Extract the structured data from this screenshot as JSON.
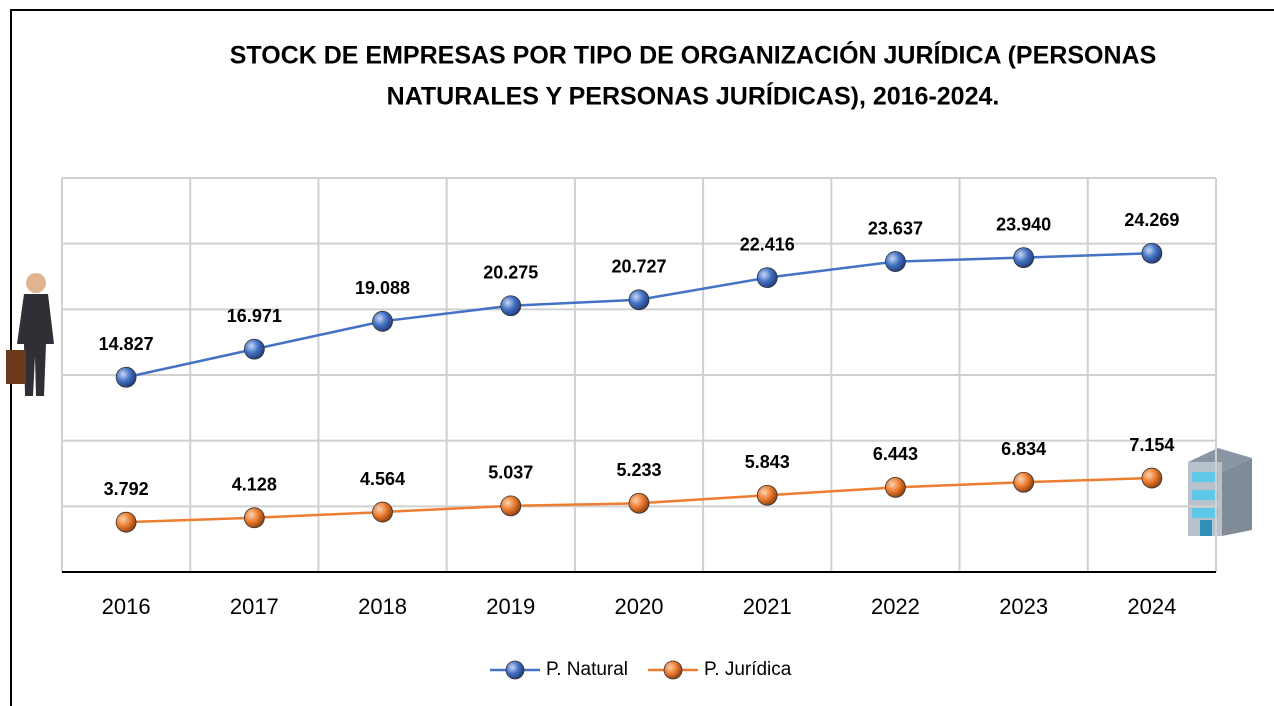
{
  "chart_data": {
    "type": "line",
    "title": [
      "STOCK DE EMPRESAS POR TIPO DE ORGANIZACIÓN JURÍDICA (PERSONAS",
      "NATURALES Y PERSONAS JURÍDICAS), 2016-2024."
    ],
    "categories": [
      "2016",
      "2017",
      "2018",
      "2019",
      "2020",
      "2021",
      "2022",
      "2023",
      "2024"
    ],
    "series": [
      {
        "name": "P. Natural",
        "color": "#4472c4",
        "values": [
          14827,
          16971,
          19088,
          20275,
          20727,
          22416,
          23637,
          23940,
          24269
        ],
        "value_labels": [
          "14.827",
          "16.971",
          "19.088",
          "20.275",
          "20.727",
          "22.416",
          "23.637",
          "23.940",
          "24.269"
        ]
      },
      {
        "name": "P. Jurídica",
        "color": "#ed7d31",
        "values": [
          3792,
          4128,
          4564,
          5037,
          5233,
          5843,
          6443,
          6834,
          7154
        ],
        "value_labels": [
          "3.792",
          "4.128",
          "4.564",
          "5.037",
          "5.233",
          "5.843",
          "6.443",
          "6.834",
          "7.154"
        ]
      }
    ],
    "ylim": [
      0,
      30000
    ],
    "yticks": [
      0,
      5000,
      10000,
      15000,
      20000,
      25000,
      30000
    ],
    "grid": true,
    "legend": "bottom"
  }
}
